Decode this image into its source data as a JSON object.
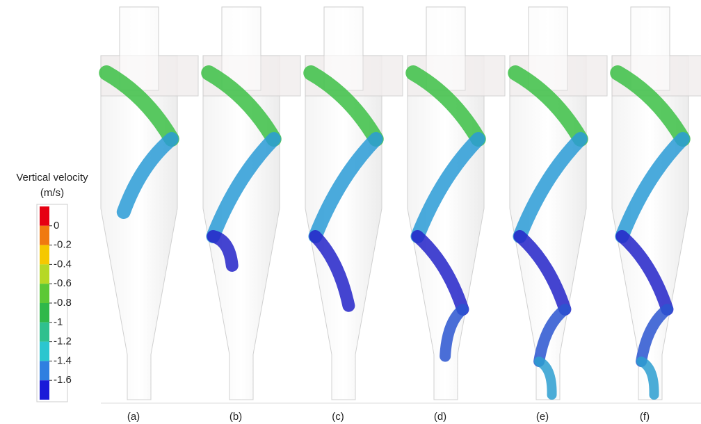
{
  "legend": {
    "title": "Vertical velocity",
    "unit": "(m/s)",
    "labels": [
      "0",
      "-0.2",
      "-0.4",
      "-0.6",
      "-0.8",
      "-1",
      "-1.2",
      "-1.4",
      "-1.6"
    ],
    "colors": [
      "#e60012",
      "#f07a10",
      "#f5c800",
      "#b6d825",
      "#5cc836",
      "#2fb84a",
      "#2fc08e",
      "#2cc6cf",
      "#2f7fe0",
      "#1a1ad8"
    ]
  },
  "panels": [
    "(a)",
    "(b)",
    "(c)",
    "(d)",
    "(e)",
    "(f)"
  ]
}
